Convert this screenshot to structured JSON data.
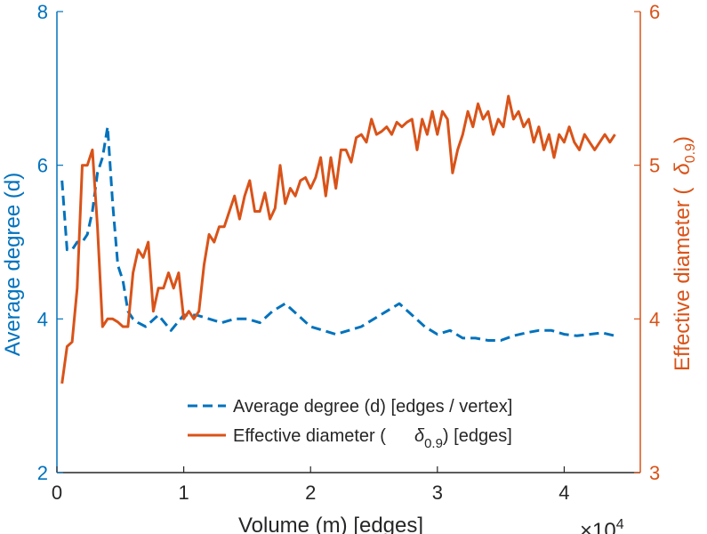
{
  "chart_data": {
    "type": "line",
    "title": "",
    "xlabel": "Volume (m) [edges]",
    "x_exponent_label": "×10",
    "x_exponent_power": "4",
    "xlim": [
      0,
      4.6
    ],
    "xticks": [
      0,
      1,
      2,
      3,
      4
    ],
    "xtick_labels": [
      "0",
      "1",
      "2",
      "3",
      "4"
    ],
    "ylabel_left": "Average degree (d)",
    "ylim_left": [
      2,
      8
    ],
    "yticks_left": [
      2,
      4,
      6,
      8
    ],
    "ytick_labels_left": [
      "2",
      "4",
      "6",
      "8"
    ],
    "ylabel_right_prefix": "Effective diameter (",
    "ylabel_right_symbol": "δ",
    "ylabel_right_subscript": "0.9",
    "ylabel_right_suffix": ")",
    "ylim_right": [
      3,
      6
    ],
    "yticks_right": [
      3,
      4,
      5,
      6
    ],
    "ytick_labels_right": [
      "3",
      "4",
      "5",
      "6"
    ],
    "legend_position": "bottom-center",
    "colors": {
      "left": "#0072BD",
      "right": "#D95319",
      "axis": "#262626"
    },
    "series": [
      {
        "name": "Average degree (d) [edges / vertex]",
        "axis": "left",
        "style": "dashed",
        "color": "#0072BD",
        "x": [
          0.04,
          0.08,
          0.12,
          0.16,
          0.2,
          0.24,
          0.28,
          0.32,
          0.36,
          0.4,
          0.44,
          0.48,
          0.52,
          0.56,
          0.6,
          0.64,
          0.7,
          0.8,
          0.9,
          1.0,
          1.1,
          1.2,
          1.3,
          1.4,
          1.5,
          1.6,
          1.7,
          1.8,
          1.9,
          2.0,
          2.1,
          2.2,
          2.3,
          2.4,
          2.5,
          2.6,
          2.7,
          2.8,
          2.9,
          3.0,
          3.1,
          3.2,
          3.3,
          3.4,
          3.5,
          3.6,
          3.7,
          3.8,
          3.9,
          4.0,
          4.1,
          4.2,
          4.3,
          4.4
        ],
        "values": [
          5.8,
          4.9,
          4.9,
          5.0,
          5.0,
          5.1,
          5.4,
          5.9,
          6.1,
          6.5,
          5.5,
          4.7,
          4.5,
          4.1,
          4.0,
          3.95,
          3.9,
          4.05,
          3.85,
          4.05,
          4.05,
          4.0,
          3.95,
          4.0,
          4.0,
          3.95,
          4.1,
          4.2,
          4.05,
          3.9,
          3.85,
          3.8,
          3.85,
          3.9,
          4.0,
          4.1,
          4.2,
          4.05,
          3.9,
          3.8,
          3.85,
          3.75,
          3.75,
          3.72,
          3.72,
          3.78,
          3.82,
          3.85,
          3.85,
          3.8,
          3.78,
          3.8,
          3.82,
          3.78
        ]
      },
      {
        "name": "Effective diameter (δ0.9) [edges]",
        "axis": "right",
        "style": "solid",
        "color": "#D95319",
        "x": [
          0.04,
          0.08,
          0.12,
          0.16,
          0.2,
          0.24,
          0.28,
          0.32,
          0.36,
          0.4,
          0.44,
          0.48,
          0.52,
          0.56,
          0.6,
          0.64,
          0.68,
          0.72,
          0.76,
          0.8,
          0.84,
          0.88,
          0.92,
          0.96,
          1.0,
          1.04,
          1.08,
          1.12,
          1.16,
          1.2,
          1.24,
          1.28,
          1.32,
          1.36,
          1.4,
          1.44,
          1.48,
          1.52,
          1.56,
          1.6,
          1.64,
          1.68,
          1.72,
          1.76,
          1.8,
          1.84,
          1.88,
          1.92,
          1.96,
          2.0,
          2.04,
          2.08,
          2.12,
          2.16,
          2.2,
          2.24,
          2.28,
          2.32,
          2.36,
          2.4,
          2.44,
          2.48,
          2.52,
          2.56,
          2.6,
          2.64,
          2.68,
          2.72,
          2.76,
          2.8,
          2.84,
          2.88,
          2.92,
          2.96,
          3.0,
          3.04,
          3.08,
          3.12,
          3.16,
          3.2,
          3.24,
          3.28,
          3.32,
          3.36,
          3.4,
          3.44,
          3.48,
          3.52,
          3.56,
          3.6,
          3.64,
          3.68,
          3.72,
          3.76,
          3.8,
          3.84,
          3.88,
          3.92,
          3.96,
          4.0,
          4.04,
          4.08,
          4.12,
          4.16,
          4.2,
          4.24,
          4.28,
          4.32,
          4.36,
          4.4
        ],
        "values": [
          3.58,
          3.82,
          3.85,
          4.2,
          5.0,
          5.0,
          5.1,
          4.6,
          3.95,
          4.0,
          4.0,
          3.98,
          3.95,
          3.95,
          4.3,
          4.45,
          4.4,
          4.5,
          4.05,
          4.2,
          4.2,
          4.3,
          4.2,
          4.3,
          4.0,
          4.05,
          4.0,
          4.05,
          4.35,
          4.55,
          4.5,
          4.6,
          4.6,
          4.7,
          4.8,
          4.65,
          4.8,
          4.9,
          4.7,
          4.7,
          4.82,
          4.65,
          4.72,
          5.0,
          4.75,
          4.85,
          4.8,
          4.9,
          4.92,
          4.85,
          4.92,
          5.05,
          4.8,
          5.05,
          4.85,
          5.1,
          5.1,
          5.02,
          5.18,
          5.2,
          5.15,
          5.3,
          5.2,
          5.22,
          5.25,
          5.2,
          5.28,
          5.25,
          5.28,
          5.3,
          5.1,
          5.3,
          5.2,
          5.35,
          5.2,
          5.35,
          5.3,
          4.95,
          5.1,
          5.2,
          5.35,
          5.25,
          5.4,
          5.3,
          5.35,
          5.2,
          5.3,
          5.25,
          5.45,
          5.3,
          5.35,
          5.25,
          5.3,
          5.15,
          5.25,
          5.1,
          5.2,
          5.05,
          5.2,
          5.15,
          5.25,
          5.15,
          5.1,
          5.2,
          5.15,
          5.1,
          5.15,
          5.2,
          5.15,
          5.2
        ]
      }
    ],
    "legend": [
      {
        "key": "degree",
        "label": "Average degree (d) [edges / vertex]"
      },
      {
        "key": "diameter",
        "prefix": "Effective diameter (",
        "symbol": "δ",
        "subscript": "0.9",
        "suffix": ") [edges]"
      }
    ]
  }
}
